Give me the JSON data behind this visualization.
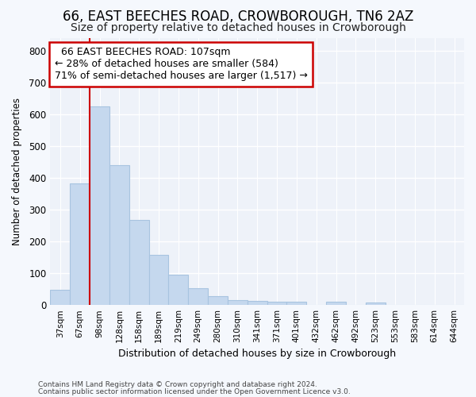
{
  "title1": "66, EAST BEECHES ROAD, CROWBOROUGH, TN6 2AZ",
  "title2": "Size of property relative to detached houses in Crowborough",
  "xlabel": "Distribution of detached houses by size in Crowborough",
  "ylabel": "Number of detached properties",
  "bar_labels": [
    "37sqm",
    "67sqm",
    "98sqm",
    "128sqm",
    "158sqm",
    "189sqm",
    "219sqm",
    "249sqm",
    "280sqm",
    "310sqm",
    "341sqm",
    "371sqm",
    "401sqm",
    "432sqm",
    "462sqm",
    "492sqm",
    "523sqm",
    "553sqm",
    "583sqm",
    "614sqm",
    "644sqm"
  ],
  "bar_values": [
    47,
    383,
    625,
    440,
    268,
    157,
    95,
    52,
    28,
    16,
    12,
    10,
    10,
    0,
    10,
    0,
    7,
    0,
    0,
    0,
    0
  ],
  "bar_color": "#c5d8ee",
  "bar_edge_color": "#a8c4e0",
  "annotation_text": "  66 EAST BEECHES ROAD: 107sqm\n← 28% of detached houses are smaller (584)\n71% of semi-detached houses are larger (1,517) →",
  "annotation_box_color": "#ffffff",
  "annotation_box_edge": "#cc0000",
  "red_line_color": "#cc0000",
  "red_line_index": 2,
  "ylim": [
    0,
    840
  ],
  "yticks": [
    0,
    100,
    200,
    300,
    400,
    500,
    600,
    700,
    800
  ],
  "footer1": "Contains HM Land Registry data © Crown copyright and database right 2024.",
  "footer2": "Contains public sector information licensed under the Open Government Licence v3.0.",
  "bg_color": "#f5f8fd",
  "plot_bg_color": "#eef2f9",
  "grid_color": "#ffffff",
  "title1_fontsize": 12,
  "title2_fontsize": 10,
  "annot_fontsize": 9
}
